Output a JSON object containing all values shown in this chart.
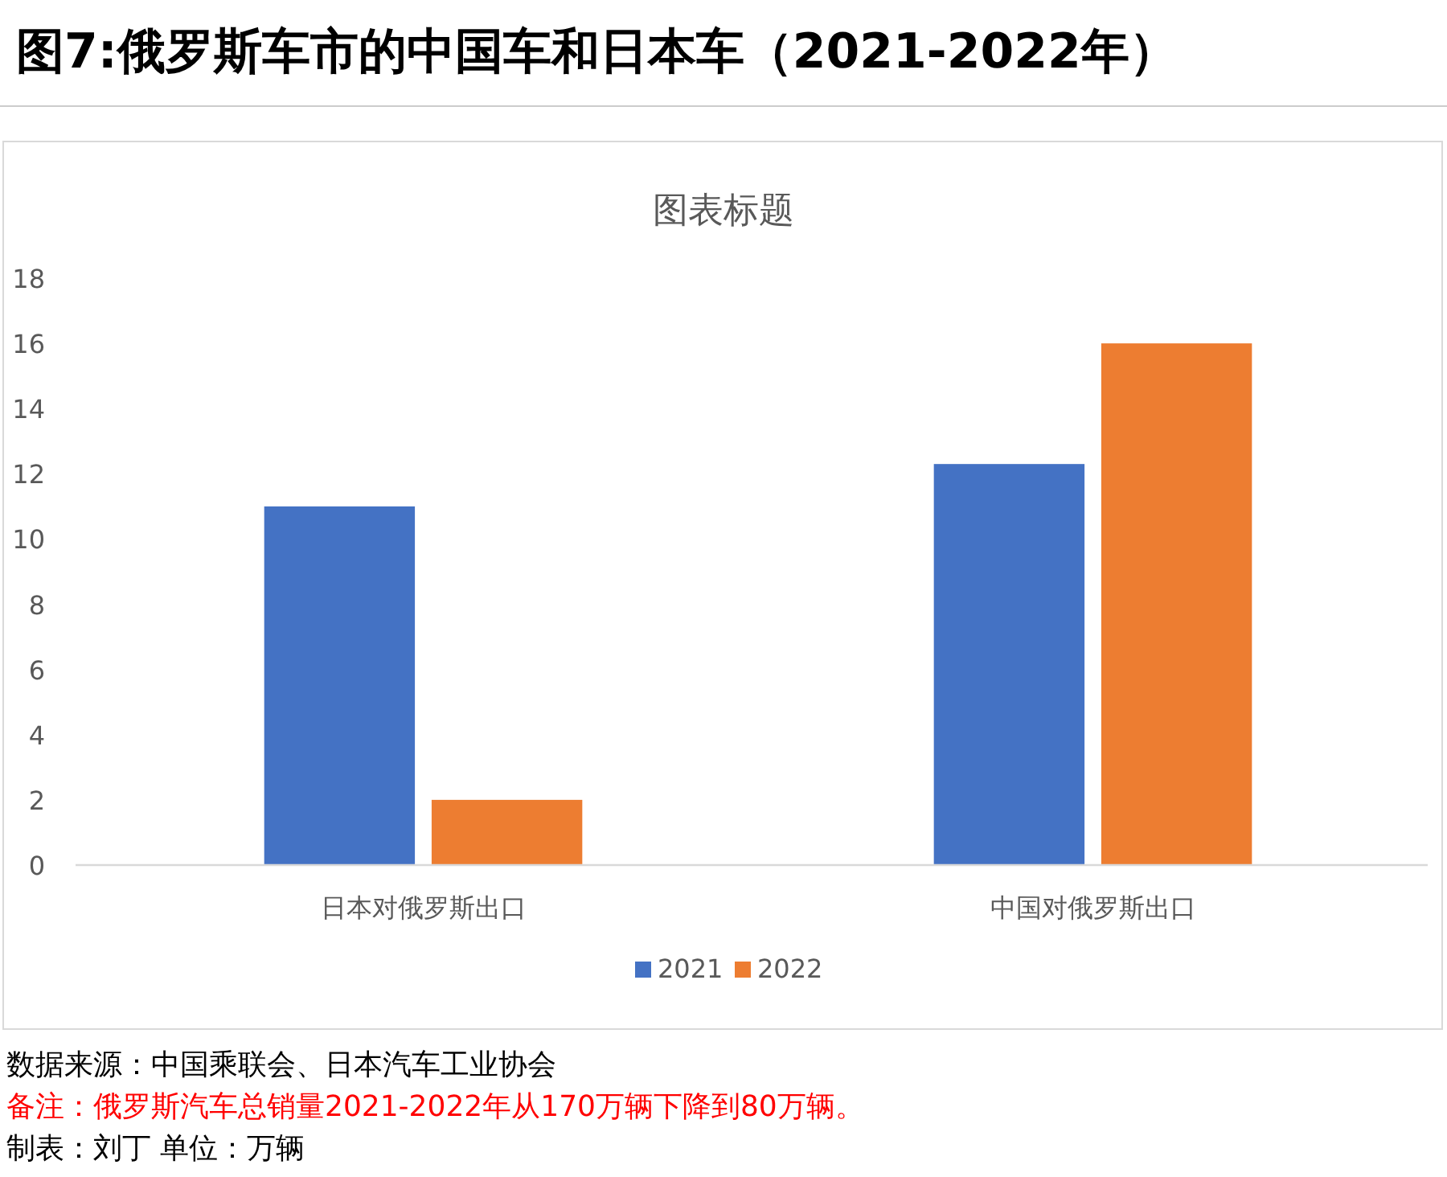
{
  "chart_data": {
    "type": "bar",
    "title": "图7:俄罗斯车市的中国车和日本车（2021-2022年）",
    "subtitle": "图表标题",
    "categories": [
      "日本对俄罗斯出口",
      "中国对俄罗斯出口"
    ],
    "series": [
      {
        "name": "2021",
        "color": "#4472c4",
        "values": [
          11,
          12.3
        ]
      },
      {
        "name": "2022",
        "color": "#ed7d31",
        "values": [
          2,
          16
        ]
      }
    ],
    "ylim": [
      0,
      18
    ],
    "yticks": [
      0,
      2,
      4,
      6,
      8,
      10,
      12,
      14,
      16,
      18
    ],
    "legend": "bottom",
    "annotations": [
      "数据来源：中国乘联会、日本汽车工业协会",
      "备注：俄罗斯汽车总销量2021-2022年从170万辆下降到80万辆。",
      "制表：刘丁  单位：万辆"
    ]
  }
}
